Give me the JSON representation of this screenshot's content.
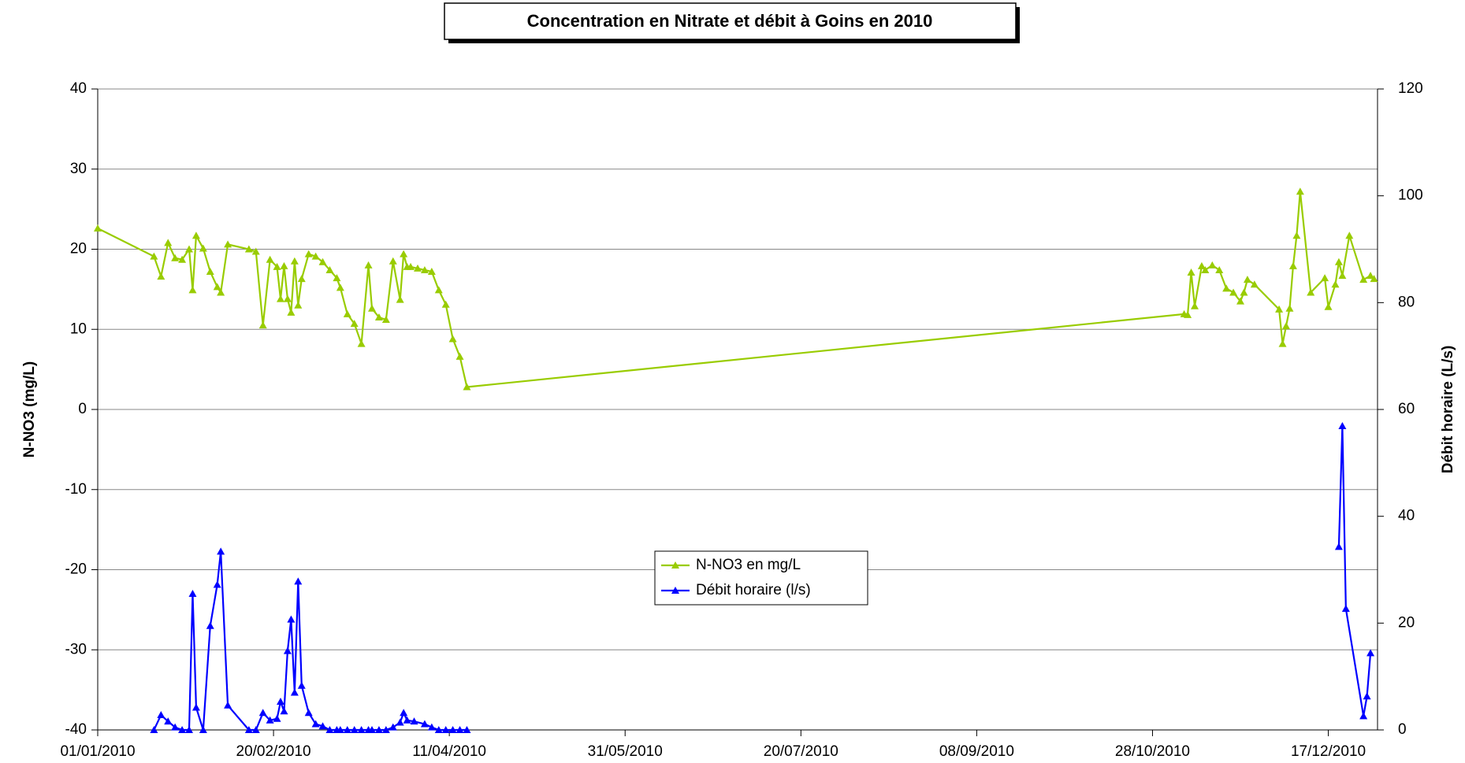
{
  "chart_data": {
    "type": "line",
    "title": "Concentration en Nitrate et débit à Goins en 2010",
    "y_label": "N-NO3 (mg/L)",
    "y2_label": "Débit horaire (L/s)",
    "xlim": [
      "2010-01-01",
      "2010-12-31"
    ],
    "xticks": [
      {
        "value": "2010-01-01",
        "label": "01/01/2010"
      },
      {
        "value": "2010-02-20",
        "label": "20/02/2010"
      },
      {
        "value": "2010-04-11",
        "label": "11/04/2010"
      },
      {
        "value": "2010-05-31",
        "label": "31/05/2010"
      },
      {
        "value": "2010-07-20",
        "label": "20/07/2010"
      },
      {
        "value": "2010-09-08",
        "label": "08/09/2010"
      },
      {
        "value": "2010-10-28",
        "label": "28/10/2010"
      },
      {
        "value": "2010-12-17",
        "label": "17/12/2010"
      }
    ],
    "ylim": [
      -40,
      40
    ],
    "yticks": [
      -40,
      -30,
      -20,
      -10,
      0,
      10,
      20,
      30,
      40
    ],
    "y2lim": [
      0,
      120
    ],
    "y2ticks": [
      0,
      20,
      40,
      60,
      80,
      100,
      120
    ],
    "grid": true,
    "legend": "center",
    "series": [
      {
        "name": "N-NO3 en mg/L",
        "color": "#99cc00",
        "x": [
          "2010-01-01",
          "2010-01-17",
          "2010-01-19",
          "2010-01-21",
          "2010-01-23",
          "2010-01-25",
          "2010-01-27",
          "2010-01-28",
          "2010-01-29",
          "2010-01-31",
          "2010-02-02",
          "2010-02-04",
          "2010-02-05",
          "2010-02-07",
          "2010-02-13",
          "2010-02-15",
          "2010-02-17",
          "2010-02-19",
          "2010-02-21",
          "2010-02-22",
          "2010-02-23",
          "2010-02-24",
          "2010-02-25",
          "2010-02-26",
          "2010-02-27",
          "2010-02-28",
          "2010-03-02",
          "2010-03-04",
          "2010-03-06",
          "2010-03-08",
          "2010-03-10",
          "2010-03-11",
          "2010-03-13",
          "2010-03-15",
          "2010-03-17",
          "2010-03-19",
          "2010-03-20",
          "2010-03-22",
          "2010-03-24",
          "2010-03-26",
          "2010-03-28",
          "2010-03-29",
          "2010-03-30",
          "2010-03-31",
          "2010-04-02",
          "2010-04-04",
          "2010-04-06",
          "2010-04-08",
          "2010-04-10",
          "2010-04-12",
          "2010-04-14",
          "2010-04-16",
          "2010-11-06",
          "2010-11-07",
          "2010-11-08",
          "2010-11-09",
          "2010-11-11",
          "2010-11-12",
          "2010-11-14",
          "2010-11-16",
          "2010-11-18",
          "2010-11-20",
          "2010-11-22",
          "2010-11-23",
          "2010-11-24",
          "2010-11-26",
          "2010-12-03",
          "2010-12-04",
          "2010-12-05",
          "2010-12-06",
          "2010-12-07",
          "2010-12-08",
          "2010-12-09",
          "2010-12-12",
          "2010-12-16",
          "2010-12-17",
          "2010-12-19",
          "2010-12-20",
          "2010-12-21",
          "2010-12-23",
          "2010-12-27",
          "2010-12-29",
          "2010-12-30"
        ],
        "values": [
          22.6,
          19.1,
          16.6,
          20.8,
          18.9,
          18.7,
          20.0,
          14.9,
          21.7,
          20.1,
          17.2,
          15.3,
          14.6,
          20.6,
          20.0,
          19.7,
          10.5,
          18.7,
          17.8,
          13.8,
          17.9,
          13.8,
          12.1,
          18.5,
          13.0,
          16.3,
          19.4,
          19.1,
          18.4,
          17.4,
          16.4,
          15.2,
          11.9,
          10.7,
          8.2,
          18.0,
          12.6,
          11.5,
          11.2,
          18.5,
          13.7,
          19.4,
          17.8,
          17.8,
          17.6,
          17.4,
          17.2,
          14.9,
          13.1,
          8.8,
          6.6,
          2.8,
          11.9,
          11.8,
          17.1,
          12.9,
          17.9,
          17.4,
          18.0,
          17.4,
          15.1,
          14.6,
          13.5,
          14.6,
          16.2,
          15.6,
          12.5,
          8.2,
          10.4,
          12.6,
          17.9,
          21.7,
          27.2,
          14.6,
          16.4,
          12.8,
          15.6,
          18.4,
          16.7,
          21.7,
          16.2,
          16.7,
          16.3
        ]
      },
      {
        "name": "Débit horaire (l/s)",
        "color": "#0000ff",
        "axis": "y2",
        "x": [
          "2010-01-17",
          "2010-01-19",
          "2010-01-21",
          "2010-01-23",
          "2010-01-25",
          "2010-01-27",
          "2010-01-28",
          "2010-01-29",
          "2010-01-31",
          "2010-02-02",
          "2010-02-04",
          "2010-02-05",
          "2010-02-07",
          "2010-02-13",
          "2010-02-15",
          "2010-02-17",
          "2010-02-19",
          "2010-02-21",
          "2010-02-22",
          "2010-02-23",
          "2010-02-24",
          "2010-02-25",
          "2010-02-26",
          "2010-02-27",
          "2010-02-28",
          "2010-03-02",
          "2010-03-04",
          "2010-03-06",
          "2010-03-08",
          "2010-03-10",
          "2010-03-11",
          "2010-03-13",
          "2010-03-15",
          "2010-03-17",
          "2010-03-19",
          "2010-03-20",
          "2010-03-22",
          "2010-03-24",
          "2010-03-26",
          "2010-03-28",
          "2010-03-29",
          "2010-03-30",
          "2010-04-01",
          "2010-04-04",
          "2010-04-06",
          "2010-04-08",
          "2010-04-10",
          "2010-04-12",
          "2010-04-14",
          "2010-04-16",
          "2010-11-06",
          "2010-12-20",
          "2010-12-21",
          "2010-12-22",
          "2010-12-27",
          "2010-12-28",
          "2010-12-29"
        ],
        "values": [
          0,
          2.8,
          1.6,
          0.5,
          0,
          0,
          25.5,
          4.2,
          0,
          19.5,
          27.2,
          33.4,
          4.6,
          0,
          0,
          3.2,
          1.8,
          2.1,
          5.3,
          3.5,
          14.8,
          20.7,
          7.0,
          27.8,
          8.3,
          3.2,
          1.1,
          0.7,
          0,
          0,
          0,
          0,
          0,
          0,
          0,
          0,
          0,
          0,
          0.5,
          1.4,
          3.2,
          1.8,
          1.6,
          1.1,
          0.5,
          0,
          0,
          0,
          0,
          0,
          null,
          34.3,
          56.9,
          22.7,
          2.6,
          6.3,
          14.4
        ]
      }
    ]
  }
}
